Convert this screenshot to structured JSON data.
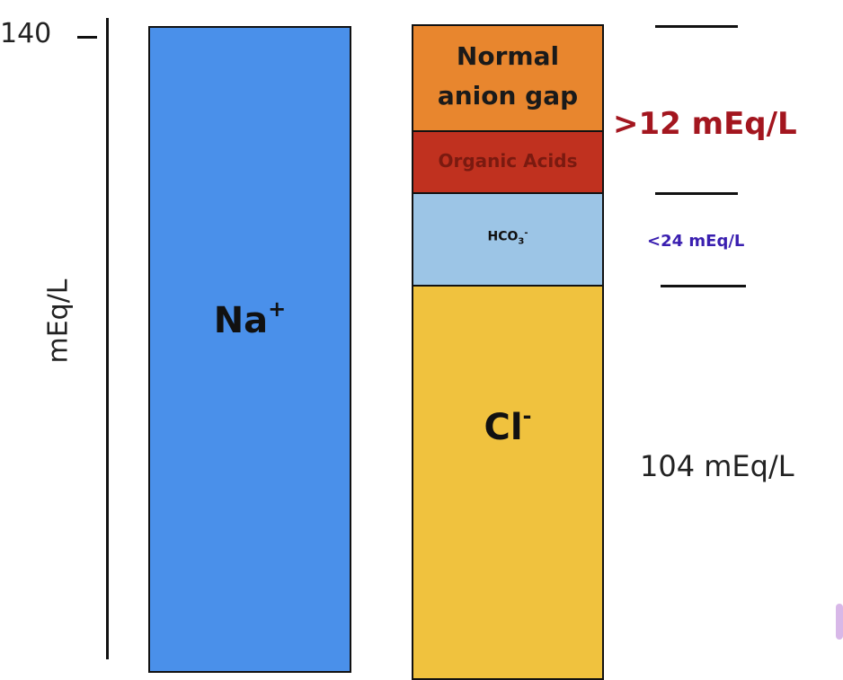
{
  "axis": {
    "tick_label": "140",
    "unit_label": "mEq/L"
  },
  "bars": {
    "cation": {
      "ion": "Na",
      "charge": "+"
    },
    "anion_stack": {
      "normal_anion_gap": "Normal anion gap",
      "organic_acids": "Organic Acids",
      "bicarbonate": {
        "base": "HCO",
        "subscript": "3",
        "charge": "-"
      },
      "chloride": {
        "ion": "Cl",
        "charge": "-"
      }
    }
  },
  "annotations": {
    "anion_gap": ">12 mEq/L",
    "bicarbonate": "<24 mEq/L",
    "chloride": "104 mEq/L"
  },
  "colors": {
    "sodium": "#4a90ea",
    "normal_anion_gap": "#e8862e",
    "organic_acids": "#c0311f",
    "bicarbonate": "#9cc5e6",
    "chloride": "#f0c23e",
    "anion_gap_annotation": "#a3161f",
    "bicarbonate_annotation": "#3a1fb0"
  }
}
